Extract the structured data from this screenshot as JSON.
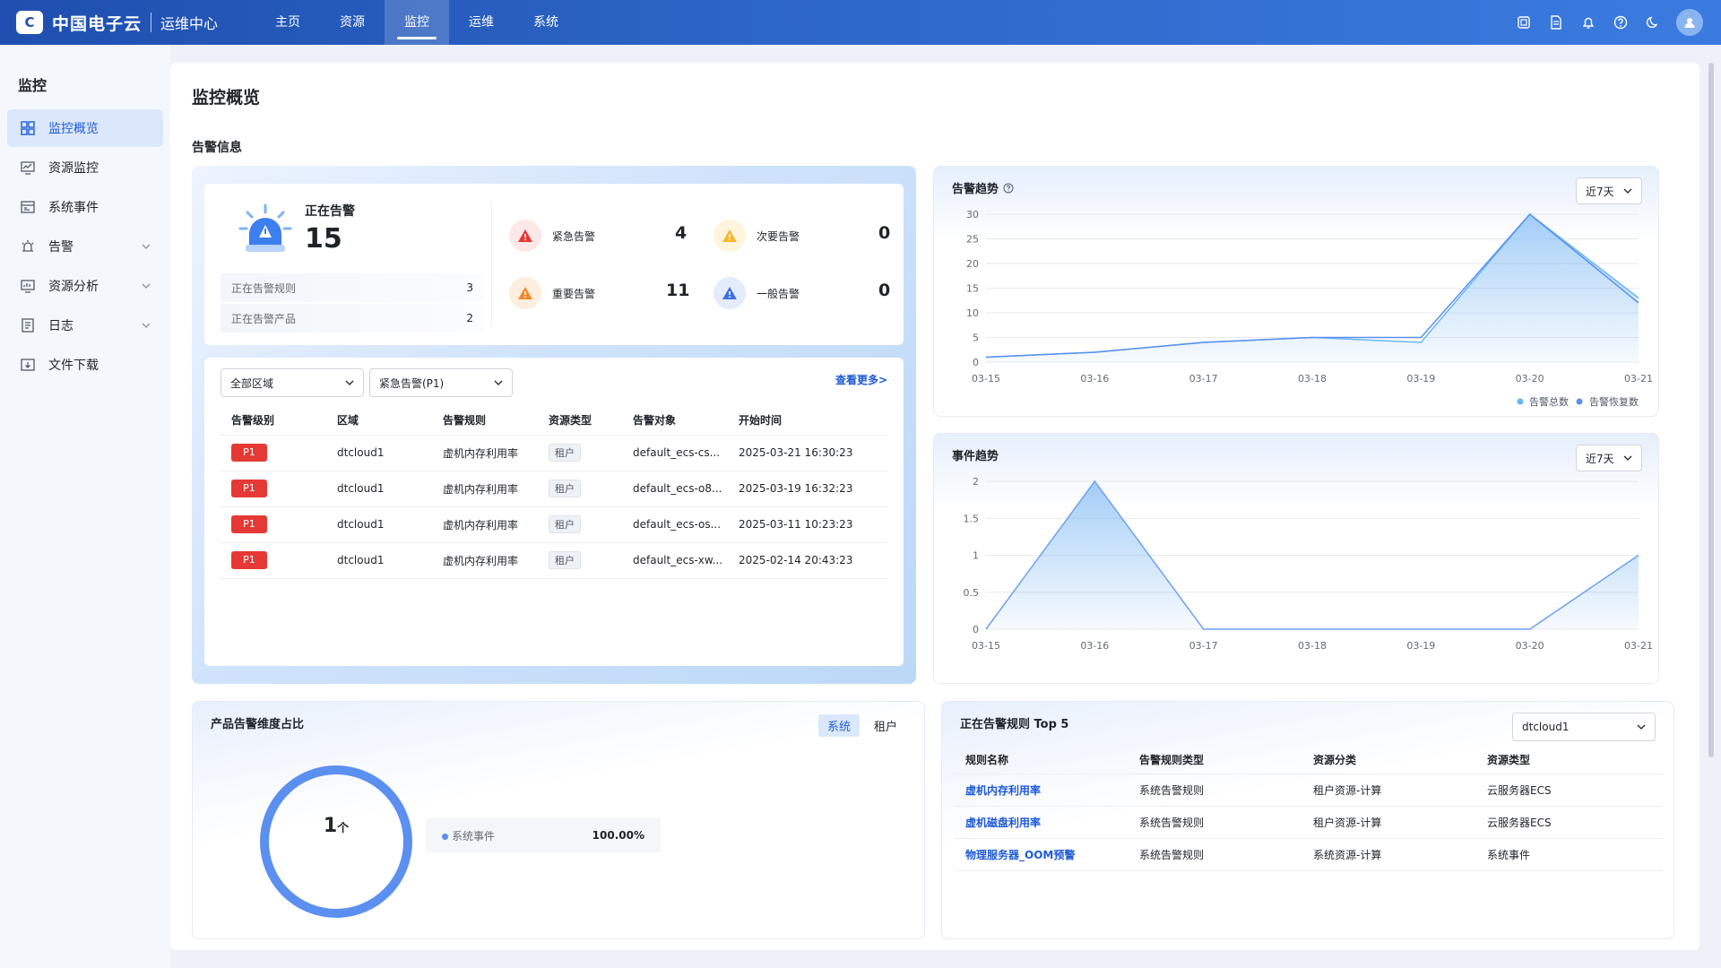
{
  "header": {
    "logo_mark": "C",
    "logo_text": "中国电子云",
    "app_name": "运维中心",
    "nav": [
      {
        "label": "主页"
      },
      {
        "label": "资源"
      },
      {
        "label": "监控"
      },
      {
        "label": "运维"
      },
      {
        "label": "系统"
      }
    ],
    "active_nav": "监控"
  },
  "sidebar": {
    "title": "监控",
    "items": [
      {
        "label": "监控概览",
        "icon": "grid-icon"
      },
      {
        "label": "资源监控",
        "icon": "monitor-icon"
      },
      {
        "label": "系统事件",
        "icon": "event-icon"
      },
      {
        "label": "告警",
        "icon": "alarm-icon"
      },
      {
        "label": "资源分析",
        "icon": "analysis-icon"
      },
      {
        "label": "日志",
        "icon": "log-icon"
      },
      {
        "label": "文件下载",
        "icon": "download-icon"
      }
    ]
  },
  "main": {
    "page_title": "监控概览",
    "section_label": "告警信息",
    "alarm_summary": {
      "label": "正在告警",
      "count": "15",
      "rules_label": "正在告警规则",
      "rules_value": "3",
      "products_label": "正在告警产品",
      "products_value": "2",
      "severities": [
        {
          "label": "紧急告警",
          "value": "4",
          "color": "#e53935"
        },
        {
          "label": "次要告警",
          "value": "0",
          "color": "#f5b82e"
        },
        {
          "label": "重要告警",
          "value": "11",
          "color": "#f08a2c"
        },
        {
          "label": "一般告警",
          "value": "0",
          "color": "#3d6fe0"
        }
      ]
    },
    "alarm_list": {
      "region_select": "全部区域",
      "level_select": "紧急告警(P1)",
      "more": "查看更多>",
      "columns": [
        "告警级别",
        "区域",
        "告警规则",
        "资源类型",
        "告警对象",
        "开始时间"
      ],
      "rows": [
        {
          "level": "P1",
          "region": "dtcloud1",
          "rule": "虚机内存利用率",
          "type": "租户",
          "object": "default_ecs-cs...",
          "time": "2025-03-21 16:30:23"
        },
        {
          "level": "P1",
          "region": "dtcloud1",
          "rule": "虚机内存利用率",
          "type": "租户",
          "object": "default_ecs-o8...",
          "time": "2025-03-19 16:32:23"
        },
        {
          "level": "P1",
          "region": "dtcloud1",
          "rule": "虚机内存利用率",
          "type": "租户",
          "object": "default_ecs-os...",
          "time": "2025-03-11 10:23:23"
        },
        {
          "level": "P1",
          "region": "dtcloud1",
          "rule": "虚机内存利用率",
          "type": "租户",
          "object": "default_ecs-xw...",
          "time": "2025-02-14 20:43:23"
        }
      ]
    },
    "alarm_trend": {
      "title": "告警趋势",
      "range": "近7天"
    },
    "event_trend": {
      "title": "事件趋势",
      "range": "近7天"
    },
    "product_ratio": {
      "title": "产品告警维度占比",
      "tabs": [
        "系统",
        "租户"
      ],
      "center_value": "1",
      "center_unit": "个",
      "legend": [
        {
          "label": "系统事件",
          "value": "100.00%"
        }
      ]
    },
    "top5": {
      "title": "正在告警规则 Top 5",
      "region_select": "dtcloud1",
      "columns": [
        "规则名称",
        "告警规则类型",
        "资源分类",
        "资源类型"
      ],
      "rows": [
        {
          "name": "虚机内存利用率",
          "rule_type": "系统告警规则",
          "category": "租户资源-计算",
          "res_type": "云服务器ECS"
        },
        {
          "name": "虚机磁盘利用率",
          "rule_type": "系统告警规则",
          "category": "租户资源-计算",
          "res_type": "云服务器ECS"
        },
        {
          "name": "物理服务器_OOM预警",
          "rule_type": "系统告警规则",
          "category": "系统资源-计算",
          "res_type": "系统事件"
        }
      ]
    }
  },
  "chart_data": [
    {
      "type": "area",
      "title": "告警趋势",
      "x": [
        "03-15",
        "03-16",
        "03-17",
        "03-18",
        "03-19",
        "03-20",
        "03-21"
      ],
      "ylim": [
        0,
        30
      ],
      "yticks": [
        0,
        5,
        10,
        15,
        20,
        25,
        30
      ],
      "series": [
        {
          "name": "告警总数",
          "values": [
            1,
            2,
            4,
            5,
            4,
            30,
            13
          ],
          "color": "#67b7f2"
        },
        {
          "name": "告警恢复数",
          "values": [
            1,
            2,
            4,
            5,
            5,
            30,
            12
          ],
          "color": "#5b8ff0"
        }
      ],
      "legend": "bottom-right",
      "grid": true
    },
    {
      "type": "area",
      "title": "事件趋势",
      "x": [
        "03-15",
        "03-16",
        "03-17",
        "03-18",
        "03-19",
        "03-20",
        "03-21"
      ],
      "ylim": [
        0,
        2
      ],
      "yticks": [
        0,
        0.5,
        1,
        1.5,
        2
      ],
      "series": [
        {
          "values": [
            0,
            2,
            0,
            0,
            0,
            0,
            1
          ],
          "color": "#6fa0f0"
        }
      ],
      "grid": true
    },
    {
      "type": "pie",
      "title": "产品告警维度占比",
      "slices": [
        {
          "label": "系统事件",
          "value": 100.0,
          "color": "#5b8ff0"
        }
      ]
    }
  ]
}
